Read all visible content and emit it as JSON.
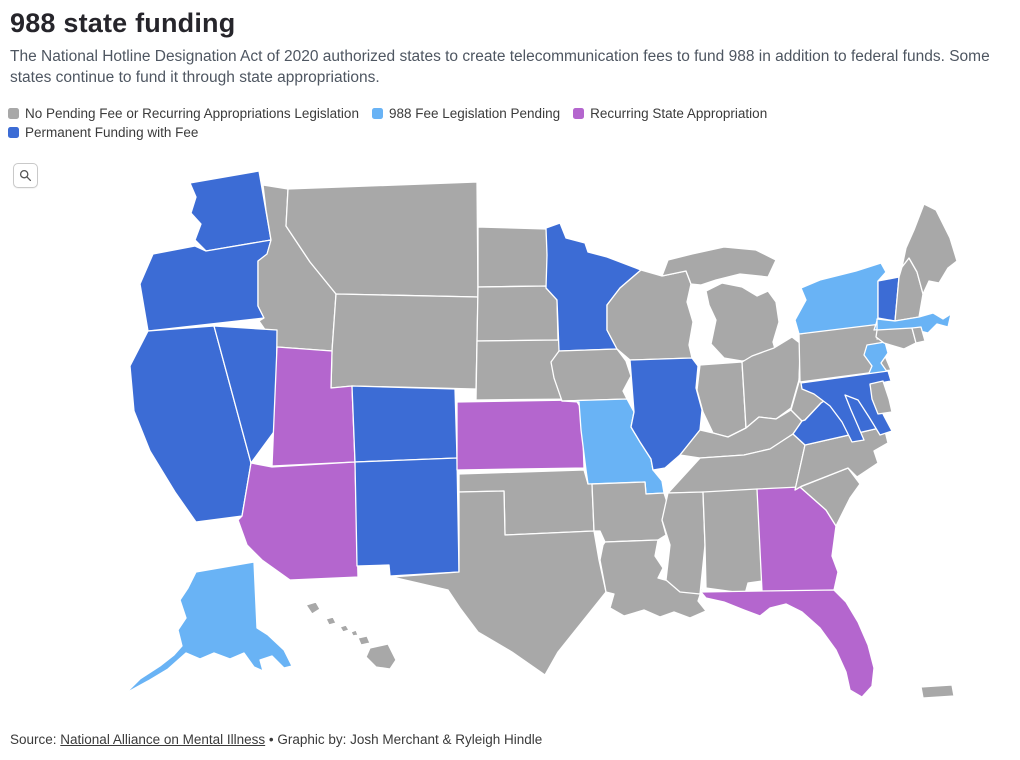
{
  "header": {
    "title": "988 state funding",
    "subtitle": "The National Hotline Designation Act of 2020 authorized states to create telecommunication fees to fund 988 in addition to federal funds. Some states continue to fund it through state appropriations."
  },
  "legend": {
    "items": [
      {
        "id": "none",
        "label": "No Pending Fee or Recurring Appropriations Legislation",
        "color": "#a8a8a8"
      },
      {
        "id": "pending",
        "label": "988 Fee Legislation Pending",
        "color": "#69b3f5"
      },
      {
        "id": "appropriation",
        "label": "Recurring State Appropriation",
        "color": "#b466ce"
      },
      {
        "id": "fee",
        "label": "Permanent Funding with Fee",
        "color": "#3c6cd5"
      }
    ]
  },
  "toolbar": {
    "zoom_icon": "magnifier"
  },
  "map": {
    "states": [
      {
        "id": "WA",
        "name": "Washington",
        "category": "fee"
      },
      {
        "id": "OR",
        "name": "Oregon",
        "category": "fee"
      },
      {
        "id": "ID",
        "name": "Idaho",
        "category": "none"
      },
      {
        "id": "MT",
        "name": "Montana",
        "category": "none"
      },
      {
        "id": "WY",
        "name": "Wyoming",
        "category": "none"
      },
      {
        "id": "CA",
        "name": "California",
        "category": "fee"
      },
      {
        "id": "NV",
        "name": "Nevada",
        "category": "fee"
      },
      {
        "id": "UT",
        "name": "Utah",
        "category": "appropriation"
      },
      {
        "id": "CO",
        "name": "Colorado",
        "category": "fee"
      },
      {
        "id": "AZ",
        "name": "Arizona",
        "category": "appropriation"
      },
      {
        "id": "NM",
        "name": "New Mexico",
        "category": "fee"
      },
      {
        "id": "ND",
        "name": "North Dakota",
        "category": "none"
      },
      {
        "id": "SD",
        "name": "South Dakota",
        "category": "none"
      },
      {
        "id": "NE",
        "name": "Nebraska",
        "category": "none"
      },
      {
        "id": "KS",
        "name": "Kansas",
        "category": "appropriation"
      },
      {
        "id": "OK",
        "name": "Oklahoma",
        "category": "none"
      },
      {
        "id": "TX",
        "name": "Texas",
        "category": "none"
      },
      {
        "id": "MN",
        "name": "Minnesota",
        "category": "fee"
      },
      {
        "id": "IA",
        "name": "Iowa",
        "category": "none"
      },
      {
        "id": "MO",
        "name": "Missouri",
        "category": "pending"
      },
      {
        "id": "AR",
        "name": "Arkansas",
        "category": "none"
      },
      {
        "id": "LA",
        "name": "Louisiana",
        "category": "none"
      },
      {
        "id": "WI",
        "name": "Wisconsin",
        "category": "none"
      },
      {
        "id": "IL",
        "name": "Illinois",
        "category": "fee"
      },
      {
        "id": "MI",
        "name": "Michigan",
        "category": "none"
      },
      {
        "id": "IN",
        "name": "Indiana",
        "category": "none"
      },
      {
        "id": "OH",
        "name": "Ohio",
        "category": "none"
      },
      {
        "id": "KY",
        "name": "Kentucky",
        "category": "none"
      },
      {
        "id": "TN",
        "name": "Tennessee",
        "category": "none"
      },
      {
        "id": "MS",
        "name": "Mississippi",
        "category": "none"
      },
      {
        "id": "AL",
        "name": "Alabama",
        "category": "none"
      },
      {
        "id": "GA",
        "name": "Georgia",
        "category": "appropriation"
      },
      {
        "id": "FL",
        "name": "Florida",
        "category": "appropriation"
      },
      {
        "id": "SC",
        "name": "South Carolina",
        "category": "none"
      },
      {
        "id": "NC",
        "name": "North Carolina",
        "category": "none"
      },
      {
        "id": "WV",
        "name": "West Virginia",
        "category": "none"
      },
      {
        "id": "VA",
        "name": "Virginia",
        "category": "fee"
      },
      {
        "id": "PA",
        "name": "Pennsylvania",
        "category": "none"
      },
      {
        "id": "NY",
        "name": "New York",
        "category": "pending"
      },
      {
        "id": "NJ",
        "name": "New Jersey",
        "category": "pending"
      },
      {
        "id": "MD",
        "name": "Maryland",
        "category": "fee"
      },
      {
        "id": "DE",
        "name": "Delaware",
        "category": "none"
      },
      {
        "id": "VT",
        "name": "Vermont",
        "category": "fee"
      },
      {
        "id": "NH",
        "name": "New Hampshire",
        "category": "none"
      },
      {
        "id": "ME",
        "name": "Maine",
        "category": "none"
      },
      {
        "id": "MA",
        "name": "Massachusetts",
        "category": "pending"
      },
      {
        "id": "CT",
        "name": "Connecticut",
        "category": "none"
      },
      {
        "id": "RI",
        "name": "Rhode Island",
        "category": "none"
      },
      {
        "id": "AK",
        "name": "Alaska",
        "category": "pending"
      },
      {
        "id": "HI",
        "name": "Hawaii",
        "category": "none"
      },
      {
        "id": "PR",
        "name": "Puerto Rico",
        "category": "none"
      }
    ]
  },
  "footer": {
    "prefix": "Source: ",
    "source_link": "National Alliance on Mental Illness",
    "credit": " • Graphic by: Josh Merchant & Ryleigh Hindle"
  },
  "colors": {
    "background": "#ffffff",
    "state_border": "#ffffff",
    "title_text": "#26252b",
    "subtitle_text": "#4e5661",
    "legend_text": "#3b3b3b",
    "footer_text": "#3a3a3a"
  }
}
